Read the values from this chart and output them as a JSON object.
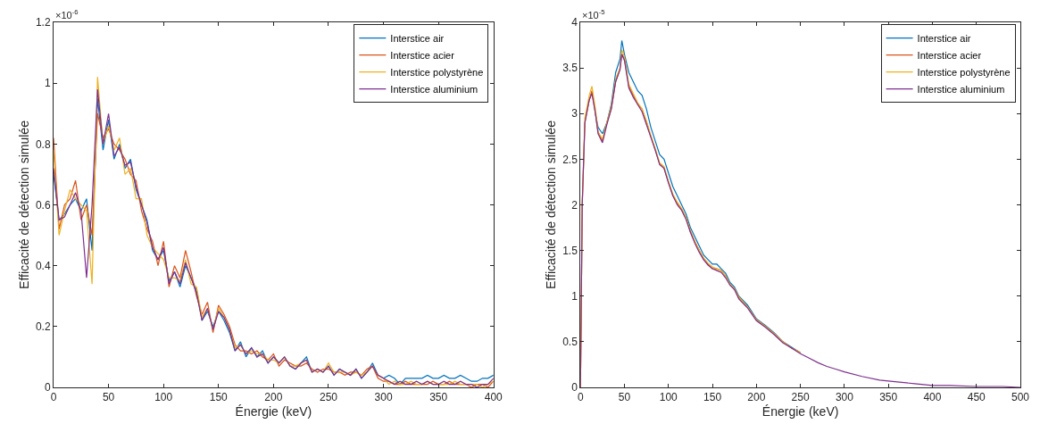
{
  "chart_data": [
    {
      "type": "line",
      "xlabel": "Énergie (keV)",
      "ylabel": "Efficacité de détection simulée",
      "annotations": [
        "×10$^{-6}$"
      ],
      "legend": "top right",
      "xlim": [
        0,
        400
      ],
      "xticks": [
        0,
        50,
        100,
        150,
        200,
        250,
        300,
        350,
        400
      ],
      "ylim": [
        0,
        1.2
      ],
      "yticks": [
        0,
        0.2,
        0.4,
        0.6,
        0.8,
        1,
        1.2
      ],
      "x": [
        0,
        5,
        10,
        15,
        20,
        25,
        30,
        35,
        40,
        45,
        50,
        55,
        60,
        65,
        70,
        75,
        80,
        85,
        90,
        95,
        100,
        105,
        110,
        115,
        120,
        125,
        130,
        135,
        140,
        145,
        150,
        155,
        160,
        165,
        170,
        175,
        180,
        185,
        190,
        195,
        200,
        205,
        210,
        215,
        220,
        225,
        230,
        235,
        240,
        245,
        250,
        255,
        260,
        265,
        270,
        275,
        280,
        285,
        290,
        295,
        300,
        305,
        310,
        315,
        320,
        325,
        330,
        335,
        340,
        345,
        350,
        355,
        360,
        365,
        370,
        375,
        380,
        385,
        390,
        395,
        400
      ],
      "series": [
        {
          "name": "Interstice air",
          "color": "#0072bd",
          "values": [
            0.7,
            0.55,
            0.57,
            0.6,
            0.62,
            0.58,
            0.62,
            0.45,
            0.95,
            0.78,
            0.88,
            0.75,
            0.8,
            0.72,
            0.75,
            0.65,
            0.6,
            0.55,
            0.45,
            0.42,
            0.45,
            0.35,
            0.38,
            0.33,
            0.4,
            0.36,
            0.32,
            0.22,
            0.25,
            0.2,
            0.25,
            0.22,
            0.18,
            0.12,
            0.15,
            0.1,
            0.13,
            0.1,
            0.12,
            0.08,
            0.1,
            0.08,
            0.1,
            0.07,
            0.06,
            0.08,
            0.1,
            0.05,
            0.06,
            0.05,
            0.07,
            0.04,
            0.06,
            0.05,
            0.04,
            0.06,
            0.03,
            0.05,
            0.08,
            0.04,
            0.03,
            0.04,
            0.03,
            0.01,
            0.03,
            0.03,
            0.03,
            0.03,
            0.04,
            0.03,
            0.03,
            0.04,
            0.03,
            0.03,
            0.04,
            0.03,
            0.02,
            0.02,
            0.03,
            0.03,
            0.04
          ]
        },
        {
          "name": "Interstice acier",
          "color": "#d95319",
          "values": [
            0.82,
            0.52,
            0.6,
            0.62,
            0.68,
            0.55,
            0.6,
            0.5,
            0.9,
            0.82,
            0.85,
            0.8,
            0.78,
            0.75,
            0.7,
            0.68,
            0.58,
            0.52,
            0.48,
            0.4,
            0.48,
            0.33,
            0.4,
            0.36,
            0.45,
            0.38,
            0.3,
            0.24,
            0.28,
            0.18,
            0.27,
            0.24,
            0.2,
            0.14,
            0.12,
            0.12,
            0.11,
            0.12,
            0.1,
            0.09,
            0.11,
            0.07,
            0.09,
            0.08,
            0.07,
            0.07,
            0.08,
            0.06,
            0.05,
            0.06,
            0.06,
            0.05,
            0.05,
            0.04,
            0.05,
            0.05,
            0.04,
            0.06,
            0.07,
            0.03,
            0.02,
            0.02,
            0.01,
            0.01,
            0.02,
            0.01,
            0.01,
            0.01,
            0.01,
            0.02,
            0.01,
            0.01,
            0.02,
            0.01,
            0.01,
            0.01,
            0.0,
            0.01,
            0.01,
            0.0,
            0.02
          ]
        },
        {
          "name": "Interstice polystyrène",
          "color": "#edb120",
          "values": [
            0.78,
            0.5,
            0.58,
            0.65,
            0.62,
            0.6,
            0.58,
            0.34,
            1.02,
            0.8,
            0.86,
            0.78,
            0.82,
            0.7,
            0.72,
            0.62,
            0.62,
            0.5,
            0.46,
            0.44,
            0.42,
            0.36,
            0.36,
            0.35,
            0.42,
            0.34,
            0.33,
            0.23,
            0.26,
            0.19,
            0.26,
            0.23,
            0.19,
            0.13,
            0.14,
            0.11,
            0.12,
            0.11,
            0.11,
            0.09,
            0.09,
            0.08,
            0.1,
            0.07,
            0.07,
            0.08,
            0.09,
            0.05,
            0.06,
            0.05,
            0.08,
            0.05,
            0.05,
            0.05,
            0.04,
            0.05,
            0.04,
            0.05,
            0.07,
            0.04,
            0.03,
            0.01,
            0.02,
            0.01,
            0.01,
            0.02,
            0.01,
            0.01,
            0.02,
            0.01,
            0.01,
            0.01,
            0.01,
            0.02,
            0.01,
            0.01,
            0.01,
            0.01,
            0.0,
            0.01,
            0.02
          ]
        },
        {
          "name": "Interstice aluminium",
          "color": "#7e2f8e",
          "values": [
            0.72,
            0.55,
            0.56,
            0.6,
            0.64,
            0.58,
            0.36,
            0.6,
            0.98,
            0.8,
            0.9,
            0.76,
            0.79,
            0.73,
            0.74,
            0.66,
            0.6,
            0.54,
            0.46,
            0.42,
            0.46,
            0.34,
            0.38,
            0.34,
            0.41,
            0.36,
            0.31,
            0.22,
            0.26,
            0.19,
            0.25,
            0.23,
            0.19,
            0.12,
            0.14,
            0.11,
            0.13,
            0.1,
            0.11,
            0.08,
            0.1,
            0.08,
            0.1,
            0.07,
            0.06,
            0.08,
            0.09,
            0.05,
            0.06,
            0.05,
            0.07,
            0.04,
            0.06,
            0.05,
            0.04,
            0.06,
            0.03,
            0.05,
            0.07,
            0.04,
            0.03,
            0.02,
            0.01,
            0.02,
            0.01,
            0.01,
            0.02,
            0.01,
            0.02,
            0.01,
            0.01,
            0.02,
            0.01,
            0.01,
            0.02,
            0.01,
            0.01,
            0.0,
            0.01,
            0.01,
            0.03
          ]
        }
      ]
    },
    {
      "type": "line",
      "xlabel": "Énergie (keV)",
      "ylabel": "Efficacité de détection simulée",
      "annotations": [
        "×10$^{-5}$"
      ],
      "legend": "top right",
      "xlim": [
        0,
        500
      ],
      "xticks": [
        0,
        50,
        100,
        150,
        200,
        250,
        300,
        350,
        400,
        450,
        500
      ],
      "ylim": [
        0,
        4
      ],
      "yticks": [
        0,
        0.5,
        1,
        1.5,
        2,
        2.5,
        3,
        3.5,
        4
      ],
      "x": [
        0,
        2,
        5,
        10,
        13,
        17,
        20,
        25,
        30,
        35,
        40,
        45,
        47,
        50,
        55,
        60,
        65,
        70,
        75,
        80,
        85,
        90,
        95,
        100,
        105,
        110,
        115,
        120,
        125,
        130,
        135,
        140,
        145,
        150,
        155,
        160,
        165,
        170,
        175,
        180,
        190,
        200,
        210,
        220,
        230,
        240,
        250,
        260,
        270,
        280,
        290,
        300,
        320,
        340,
        360,
        380,
        400,
        420,
        450,
        480,
        500
      ],
      "series": [
        {
          "name": "Interstice air",
          "color": "#0072bd",
          "values": [
            null,
            null,
            null,
            null,
            null,
            3.0,
            2.85,
            2.78,
            2.9,
            3.1,
            3.45,
            3.6,
            3.8,
            3.65,
            3.45,
            3.35,
            3.25,
            3.2,
            3.05,
            2.85,
            2.7,
            2.55,
            2.5,
            2.35,
            2.2,
            2.1,
            2.0,
            1.9,
            1.75,
            1.65,
            1.55,
            1.45,
            1.4,
            1.35,
            1.35,
            1.3,
            1.25,
            1.15,
            1.1,
            1.0,
            0.9,
            0.75,
            0.68,
            0.6,
            0.5,
            0.44,
            0.38,
            null,
            null,
            null,
            null,
            null,
            null,
            null,
            null,
            null,
            null,
            null,
            null,
            null,
            null
          ]
        },
        {
          "name": "Interstice acier",
          "color": "#d95319",
          "values": [
            0,
            2.0,
            2.9,
            3.15,
            3.25,
            3.0,
            2.8,
            2.7,
            2.9,
            3.05,
            3.35,
            3.5,
            3.65,
            3.6,
            3.3,
            3.2,
            3.1,
            3.05,
            2.9,
            2.75,
            2.6,
            2.45,
            2.4,
            2.25,
            2.1,
            2.02,
            1.95,
            1.85,
            1.7,
            1.6,
            1.5,
            1.4,
            1.35,
            1.3,
            1.3,
            1.28,
            1.22,
            1.12,
            1.08,
            0.98,
            0.88,
            0.74,
            0.67,
            0.59,
            0.5,
            0.43,
            0.38,
            null,
            null,
            null,
            null,
            null,
            null,
            null,
            null,
            null,
            null,
            null,
            null,
            null,
            null
          ]
        },
        {
          "name": "Interstice polystyrène",
          "color": "#edb120",
          "values": [
            0,
            2.0,
            2.95,
            3.2,
            3.3,
            3.05,
            2.8,
            2.72,
            2.9,
            3.08,
            3.38,
            3.5,
            3.7,
            3.62,
            3.32,
            3.22,
            3.12,
            3.05,
            2.92,
            2.76,
            2.62,
            2.46,
            2.42,
            2.26,
            2.12,
            2.03,
            1.96,
            1.86,
            1.72,
            1.6,
            1.5,
            1.42,
            1.36,
            1.32,
            1.3,
            1.28,
            1.22,
            1.13,
            1.08,
            0.99,
            0.88,
            0.74,
            0.67,
            0.59,
            0.5,
            0.43,
            0.38,
            null,
            null,
            null,
            null,
            null,
            null,
            null,
            null,
            null,
            null,
            null,
            null,
            null,
            null
          ]
        },
        {
          "name": "Interstice aluminium",
          "color": "#7e2f8e",
          "values": [
            0,
            2.0,
            2.9,
            3.15,
            3.22,
            3.0,
            2.78,
            2.68,
            2.88,
            3.05,
            3.35,
            3.48,
            3.65,
            3.58,
            3.28,
            3.18,
            3.1,
            3.02,
            2.88,
            2.74,
            2.6,
            2.44,
            2.4,
            2.24,
            2.1,
            2.0,
            1.94,
            1.84,
            1.7,
            1.58,
            1.48,
            1.4,
            1.34,
            1.3,
            1.28,
            1.26,
            1.2,
            1.12,
            1.07,
            0.97,
            0.87,
            0.73,
            0.66,
            0.58,
            0.49,
            0.43,
            0.37,
            0.32,
            0.27,
            0.23,
            0.2,
            0.17,
            0.12,
            0.08,
            0.06,
            0.04,
            0.02,
            0.02,
            0.01,
            0.01,
            0
          ]
        }
      ]
    }
  ]
}
